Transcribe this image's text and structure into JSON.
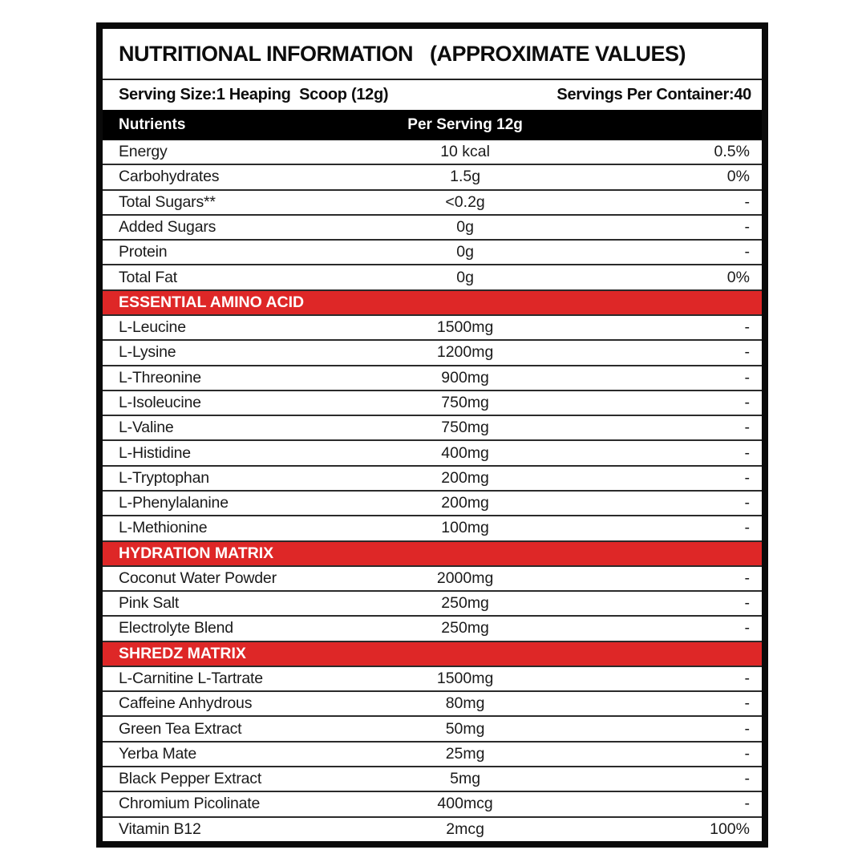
{
  "title": "NUTRITIONAL INFORMATION   (APPROXIMATE VALUES)",
  "serving": {
    "size_label": "Serving Size:1 Heaping  Scoop (12g)",
    "per_container_label": "Servings Per Container:40"
  },
  "table": {
    "colors": {
      "section_red": "#de2727",
      "header_black": "#000000",
      "border_black": "#0a0a0a"
    },
    "header": {
      "nutrients": "Nutrients",
      "per_serving": "Per Serving 12g"
    },
    "rows": [
      {
        "type": "item",
        "name": "Energy",
        "amount": "10 kcal",
        "rda": "0.5%"
      },
      {
        "type": "item",
        "name": "Carbohydrates",
        "amount": "1.5g",
        "rda": "0%"
      },
      {
        "type": "item",
        "name": "Total Sugars**",
        "amount": "<0.2g",
        "rda": "-"
      },
      {
        "type": "item",
        "name": "Added Sugars",
        "amount": "0g",
        "rda": "-"
      },
      {
        "type": "item",
        "name": "Protein",
        "amount": "0g",
        "rda": "-"
      },
      {
        "type": "item",
        "name": "Total Fat",
        "amount": "0g",
        "rda": "0%"
      },
      {
        "type": "section",
        "name": "ESSENTIAL AMINO ACID"
      },
      {
        "type": "item",
        "name": "L-Leucine",
        "amount": "1500mg",
        "rda": "-"
      },
      {
        "type": "item",
        "name": "L-Lysine",
        "amount": "1200mg",
        "rda": "-"
      },
      {
        "type": "item",
        "name": "L-Threonine",
        "amount": "900mg",
        "rda": "-"
      },
      {
        "type": "item",
        "name": "L-Isoleucine",
        "amount": "750mg",
        "rda": "-"
      },
      {
        "type": "item",
        "name": "L-Valine",
        "amount": "750mg",
        "rda": "-"
      },
      {
        "type": "item",
        "name": "L-Histidine",
        "amount": "400mg",
        "rda": "-"
      },
      {
        "type": "item",
        "name": "L-Tryptophan",
        "amount": "200mg",
        "rda": "-"
      },
      {
        "type": "item",
        "name": "L-Phenylalanine",
        "amount": "200mg",
        "rda": "-"
      },
      {
        "type": "item",
        "name": "L-Methionine",
        "amount": "100mg",
        "rda": "-"
      },
      {
        "type": "section",
        "name": "HYDRATION MATRIX"
      },
      {
        "type": "item",
        "name": "Coconut Water Powder",
        "amount": "2000mg",
        "rda": "-"
      },
      {
        "type": "item",
        "name": "Pink Salt",
        "amount": "250mg",
        "rda": "-"
      },
      {
        "type": "item",
        "name": "Electrolyte Blend",
        "amount": "250mg",
        "rda": "-"
      },
      {
        "type": "section",
        "name": "SHREDZ MATRIX"
      },
      {
        "type": "item",
        "name": "L-Carnitine L-Tartrate",
        "amount": "1500mg",
        "rda": "-"
      },
      {
        "type": "item",
        "name": "Caffeine Anhydrous",
        "amount": "80mg",
        "rda": "-"
      },
      {
        "type": "item",
        "name": "Green Tea Extract",
        "amount": "50mg",
        "rda": "-"
      },
      {
        "type": "item",
        "name": "Yerba Mate",
        "amount": "25mg",
        "rda": "-"
      },
      {
        "type": "item",
        "name": "Black Pepper Extract",
        "amount": "5mg",
        "rda": "-"
      },
      {
        "type": "item",
        "name": "Chromium Picolinate",
        "amount": "400mcg",
        "rda": "-"
      },
      {
        "type": "item",
        "name": "Vitamin B12",
        "amount": "2mcg",
        "rda": "100%"
      }
    ]
  }
}
